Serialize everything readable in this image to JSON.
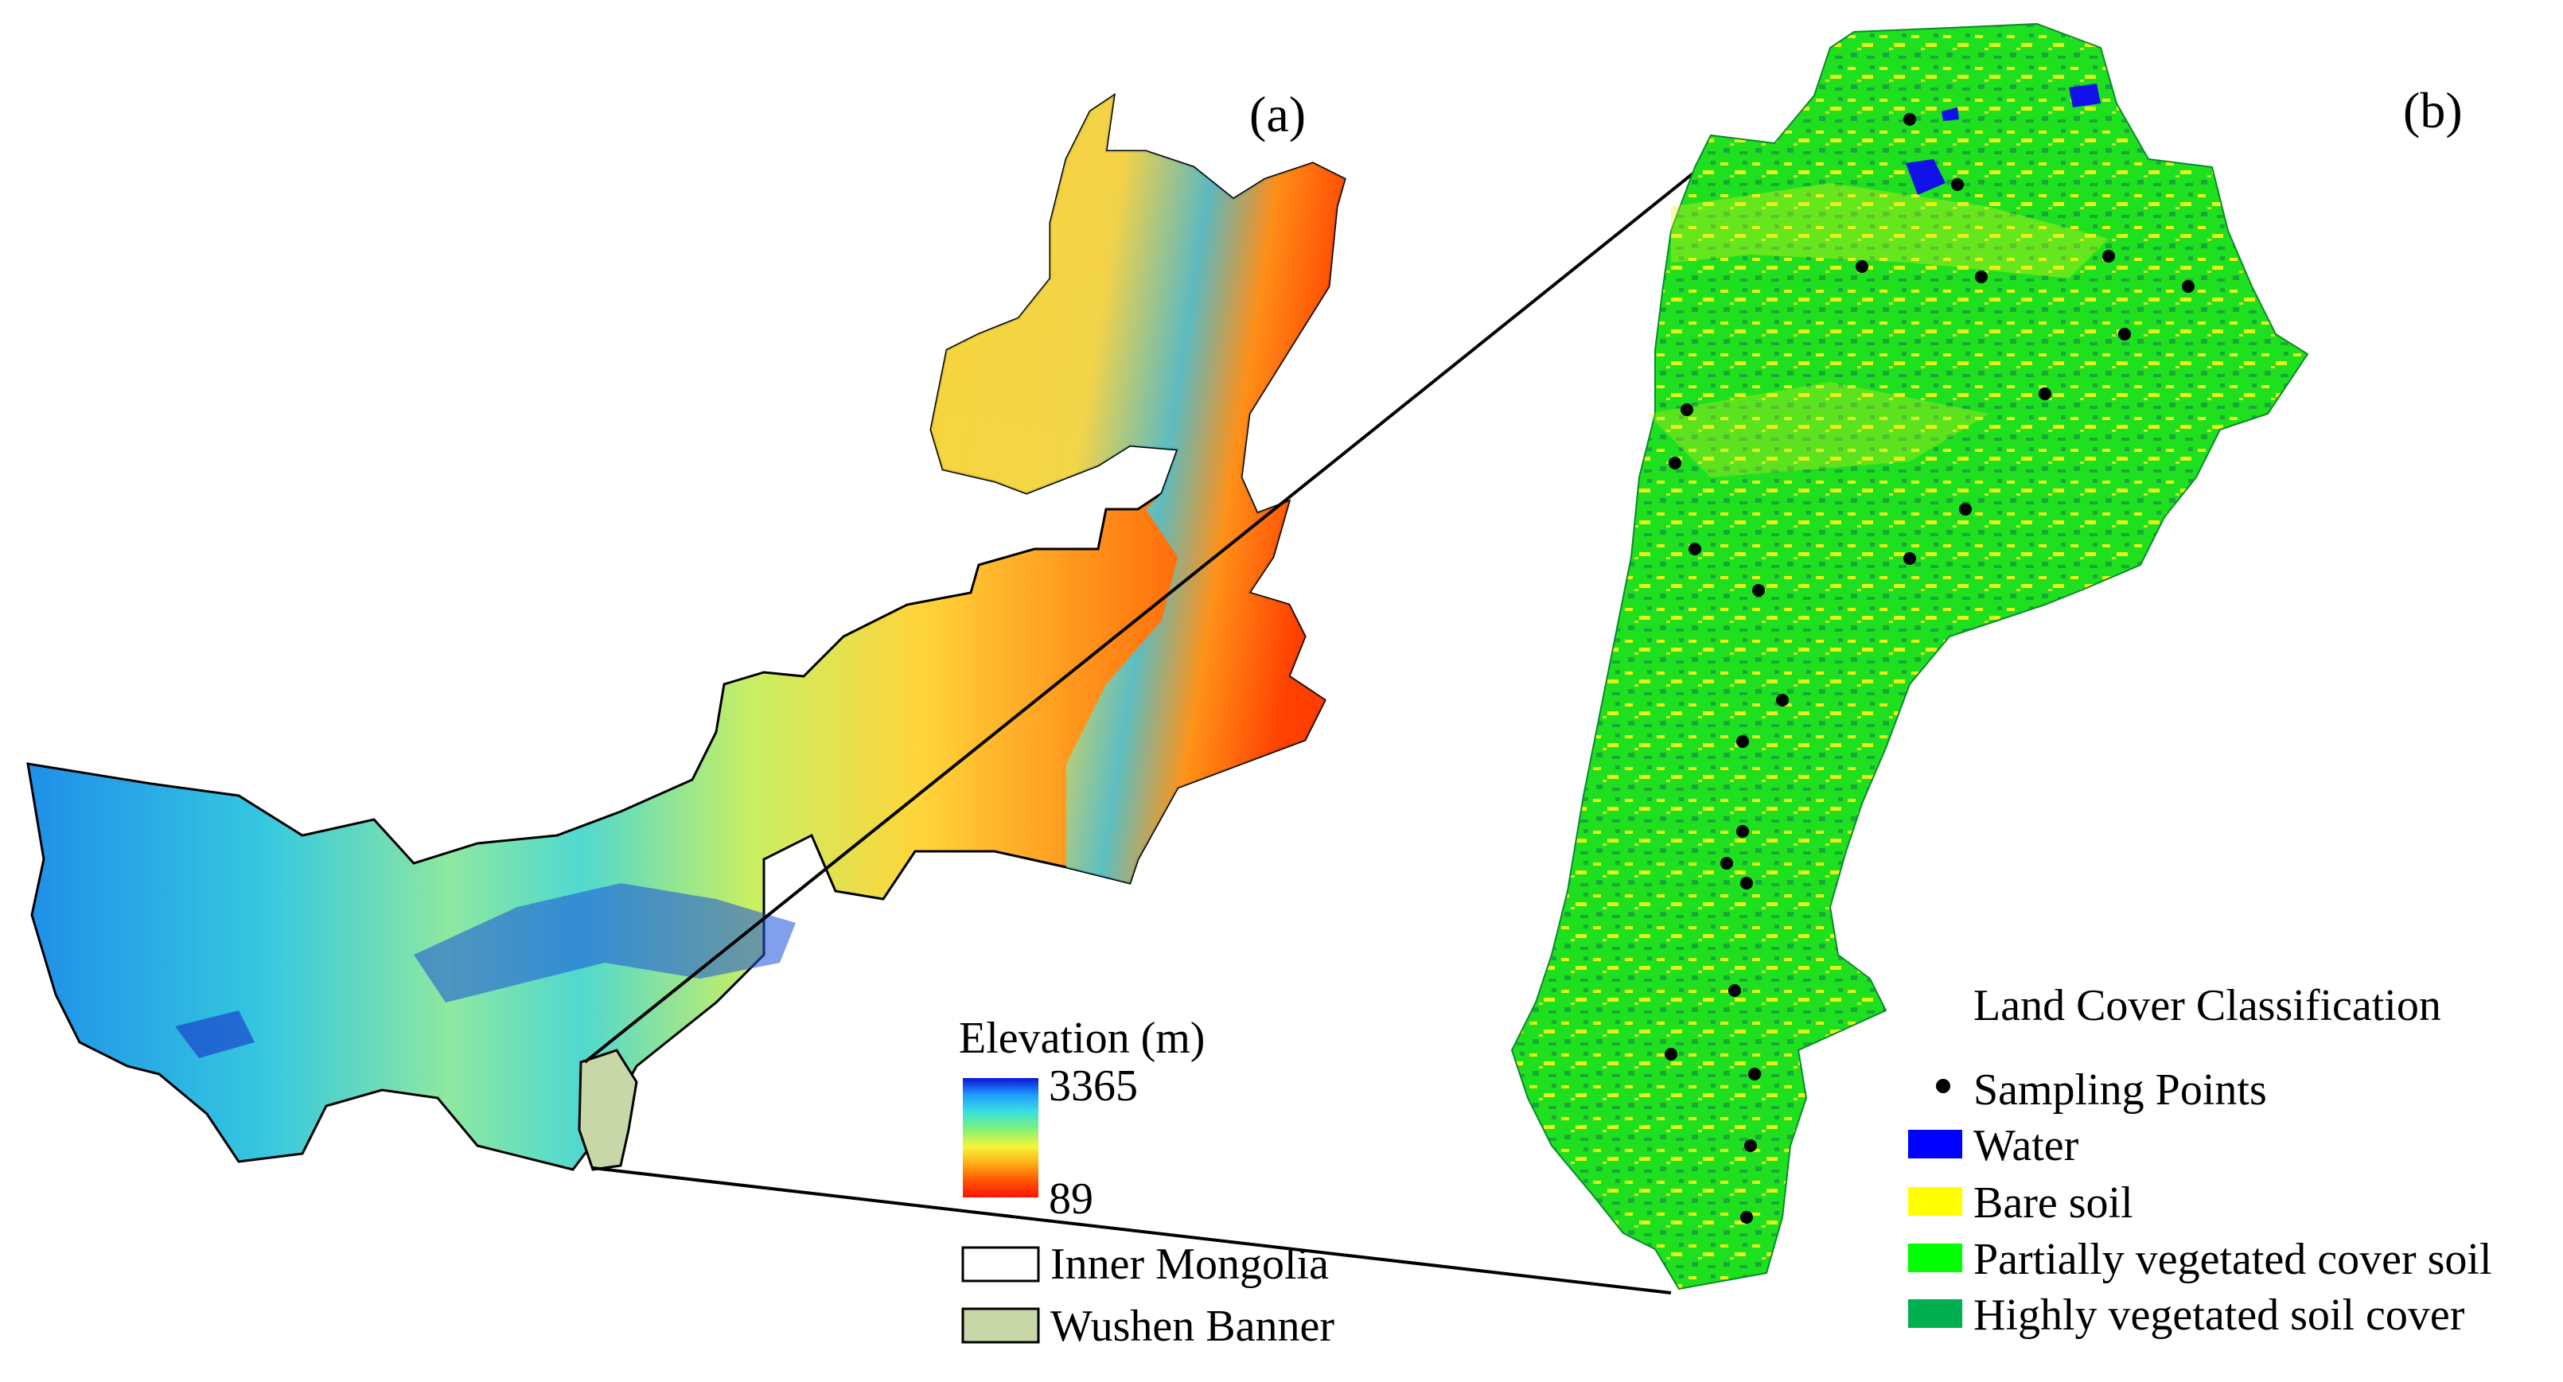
{
  "panels": {
    "a": {
      "label": "(a)",
      "elevation_legend": {
        "title": "Elevation (m)",
        "max_label": "3365",
        "min_label": "89",
        "gradient_colors": [
          "#0a14d6",
          "#1e9bff",
          "#39e0e0",
          "#7bf07d",
          "#f5f53a",
          "#ffb21a",
          "#ff5a00",
          "#ff1100"
        ]
      },
      "boundary_legend": [
        {
          "label": "Inner Mongolia",
          "color": "#ffffff"
        },
        {
          "label": "Wushen Banner",
          "color": "#c8d7a8"
        }
      ]
    },
    "b": {
      "label": "(b)",
      "legend_title": "Land Cover Classification",
      "sampling_label": "Sampling Points",
      "classes": [
        {
          "label": "Water",
          "color": "#0000ff"
        },
        {
          "label": "Bare soil",
          "color": "#ffff00"
        },
        {
          "label": "Partially vegetated cover soil",
          "color": "#00ff00"
        },
        {
          "label": "Highly vegetated soil cover",
          "color": "#00b050"
        }
      ],
      "sampling_point_color": "#000000"
    }
  }
}
